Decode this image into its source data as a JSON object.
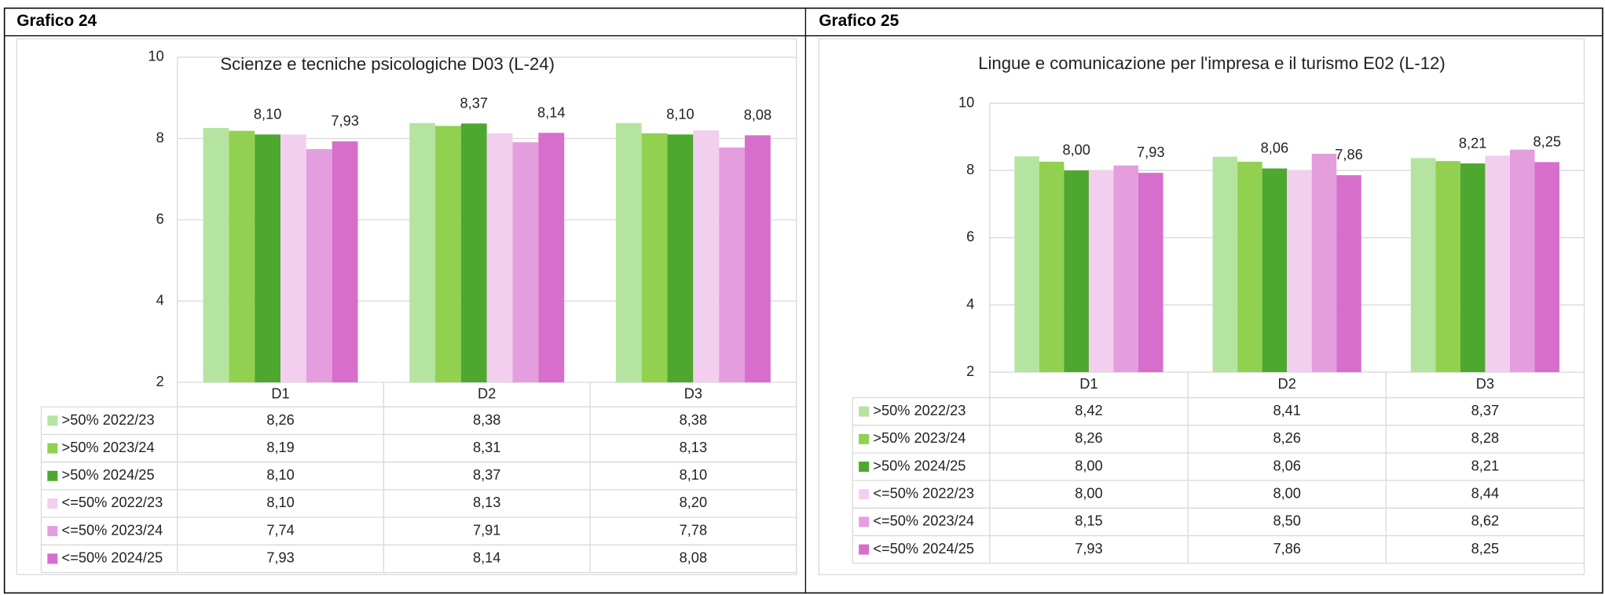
{
  "chart_data": [
    {
      "type": "bar",
      "panel_title": "Grafico 24",
      "title": "Scienze e tecniche psicologiche D03 (L-24)",
      "categories": [
        "D1",
        "D2",
        "D3"
      ],
      "ylim": [
        2,
        10
      ],
      "yticks": [
        2,
        4,
        6,
        8,
        10
      ],
      "grid": true,
      "series": [
        {
          "name": ">50% 2022/23",
          "color": "#b5e4a0",
          "data_labels": false,
          "values": [
            8.26,
            8.38,
            8.38
          ],
          "value_labels": [
            "8,26",
            "8,38",
            "8,38"
          ]
        },
        {
          "name": ">50% 2023/24",
          "color": "#92d050",
          "data_labels": false,
          "values": [
            8.19,
            8.31,
            8.13
          ],
          "value_labels": [
            "8,19",
            "8,31",
            "8,13"
          ]
        },
        {
          "name": ">50% 2024/25",
          "color": "#4ea72e",
          "data_labels": true,
          "values": [
            8.1,
            8.37,
            8.1
          ],
          "value_labels": [
            "8,10",
            "8,37",
            "8,10"
          ]
        },
        {
          "name": "<=50% 2022/23",
          "color": "#f2cfee",
          "data_labels": false,
          "values": [
            8.1,
            8.13,
            8.2
          ],
          "value_labels": [
            "8,10",
            "8,13",
            "8,20"
          ]
        },
        {
          "name": "<=50% 2023/24",
          "color": "#e49edd",
          "data_labels": false,
          "values": [
            7.74,
            7.91,
            7.78
          ],
          "value_labels": [
            "7,74",
            "7,91",
            "7,78"
          ]
        },
        {
          "name": "<=50% 2024/25",
          "color": "#d86ecc",
          "data_labels": true,
          "values": [
            7.93,
            8.14,
            8.08
          ],
          "value_labels": [
            "7,93",
            "8,14",
            "8,08"
          ]
        }
      ]
    },
    {
      "type": "bar",
      "panel_title": "Grafico 25",
      "title": "Lingue e comunicazione per l'impresa e il turismo E02 (L-12)",
      "categories": [
        "D1",
        "D2",
        "D3"
      ],
      "ylim": [
        2,
        10
      ],
      "yticks": [
        2,
        4,
        6,
        8,
        10
      ],
      "grid": true,
      "series": [
        {
          "name": ">50% 2022/23",
          "color": "#b5e4a0",
          "data_labels": false,
          "values": [
            8.42,
            8.41,
            8.37
          ],
          "value_labels": [
            "8,42",
            "8,41",
            "8,37"
          ]
        },
        {
          "name": ">50% 2023/24",
          "color": "#92d050",
          "data_labels": false,
          "values": [
            8.26,
            8.26,
            8.28
          ],
          "value_labels": [
            "8,26",
            "8,26",
            "8,28"
          ]
        },
        {
          "name": ">50% 2024/25",
          "color": "#4ea72e",
          "data_labels": true,
          "values": [
            8.0,
            8.06,
            8.21
          ],
          "value_labels": [
            "8,00",
            "8,06",
            "8,21"
          ]
        },
        {
          "name": "<=50% 2022/23",
          "color": "#f2cfee",
          "data_labels": false,
          "values": [
            8.0,
            8.0,
            8.44
          ],
          "value_labels": [
            "8,00",
            "8,00",
            "8,44"
          ]
        },
        {
          "name": "<=50% 2023/24",
          "color": "#e49edd",
          "data_labels": false,
          "values": [
            8.15,
            8.5,
            8.62
          ],
          "value_labels": [
            "8,15",
            "8,50",
            "8,62"
          ]
        },
        {
          "name": "<=50% 2024/25",
          "color": "#d86ecc",
          "data_labels": true,
          "values": [
            7.93,
            7.86,
            8.25
          ],
          "value_labels": [
            "7,93",
            "7,86",
            "8,25"
          ]
        }
      ]
    }
  ]
}
